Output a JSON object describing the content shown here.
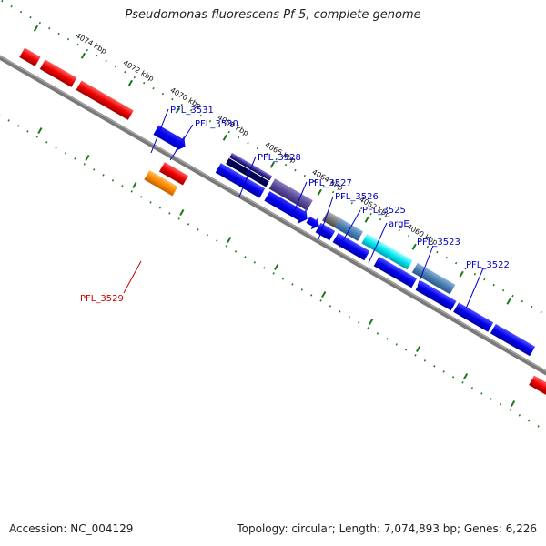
{
  "title": "Pseudomonas fluorescens Pf-5, complete genome",
  "footer": {
    "accession": "Accession: NC_004129",
    "summary": "Topology: circular; Length: 7,074,893 bp; Genes: 6,226"
  },
  "tick_labels": [
    "4074 kbp",
    "4072 kbp",
    "4070 kbp",
    "4068 kbp",
    "4066 kbp",
    "4064 kbp",
    "4062 kbp",
    "4060 kbp"
  ],
  "genes": [
    {
      "id": "pfl3531",
      "label": "PFL_3531",
      "color": "#0000cc"
    },
    {
      "id": "pfl3530",
      "label": "PFL_3530",
      "color": "#0000cc"
    },
    {
      "id": "pfl3528",
      "label": "PFL_3528",
      "color": "#0000cc"
    },
    {
      "id": "pfl3527",
      "label": "PFL_3527",
      "color": "#0000cc"
    },
    {
      "id": "pfl3526",
      "label": "PFL_3526",
      "color": "#0000cc"
    },
    {
      "id": "pfl3525",
      "label": "PFL_3525",
      "color": "#0000cc"
    },
    {
      "id": "arge",
      "label": "argE",
      "color": "#0000cc"
    },
    {
      "id": "pfl3523",
      "label": "PFL_3523",
      "color": "#0000cc"
    },
    {
      "id": "pfl3522",
      "label": "PFL_3522",
      "color": "#0000cc"
    },
    {
      "id": "pfl3529",
      "label": "PFL_3529",
      "color": "#cc0000"
    }
  ],
  "colors": {
    "backbone": "#7a7a7a",
    "ticks": "#1a7a1a",
    "red_genes": "#ee0000",
    "blue_genes": "#0000ee",
    "orange_gene": "#ff8800",
    "cyan_gene": "#00e5ee",
    "steel_gene": "#4a7fb0",
    "purple_gene": "#5a4a9a",
    "gray_gene": "#777777"
  }
}
